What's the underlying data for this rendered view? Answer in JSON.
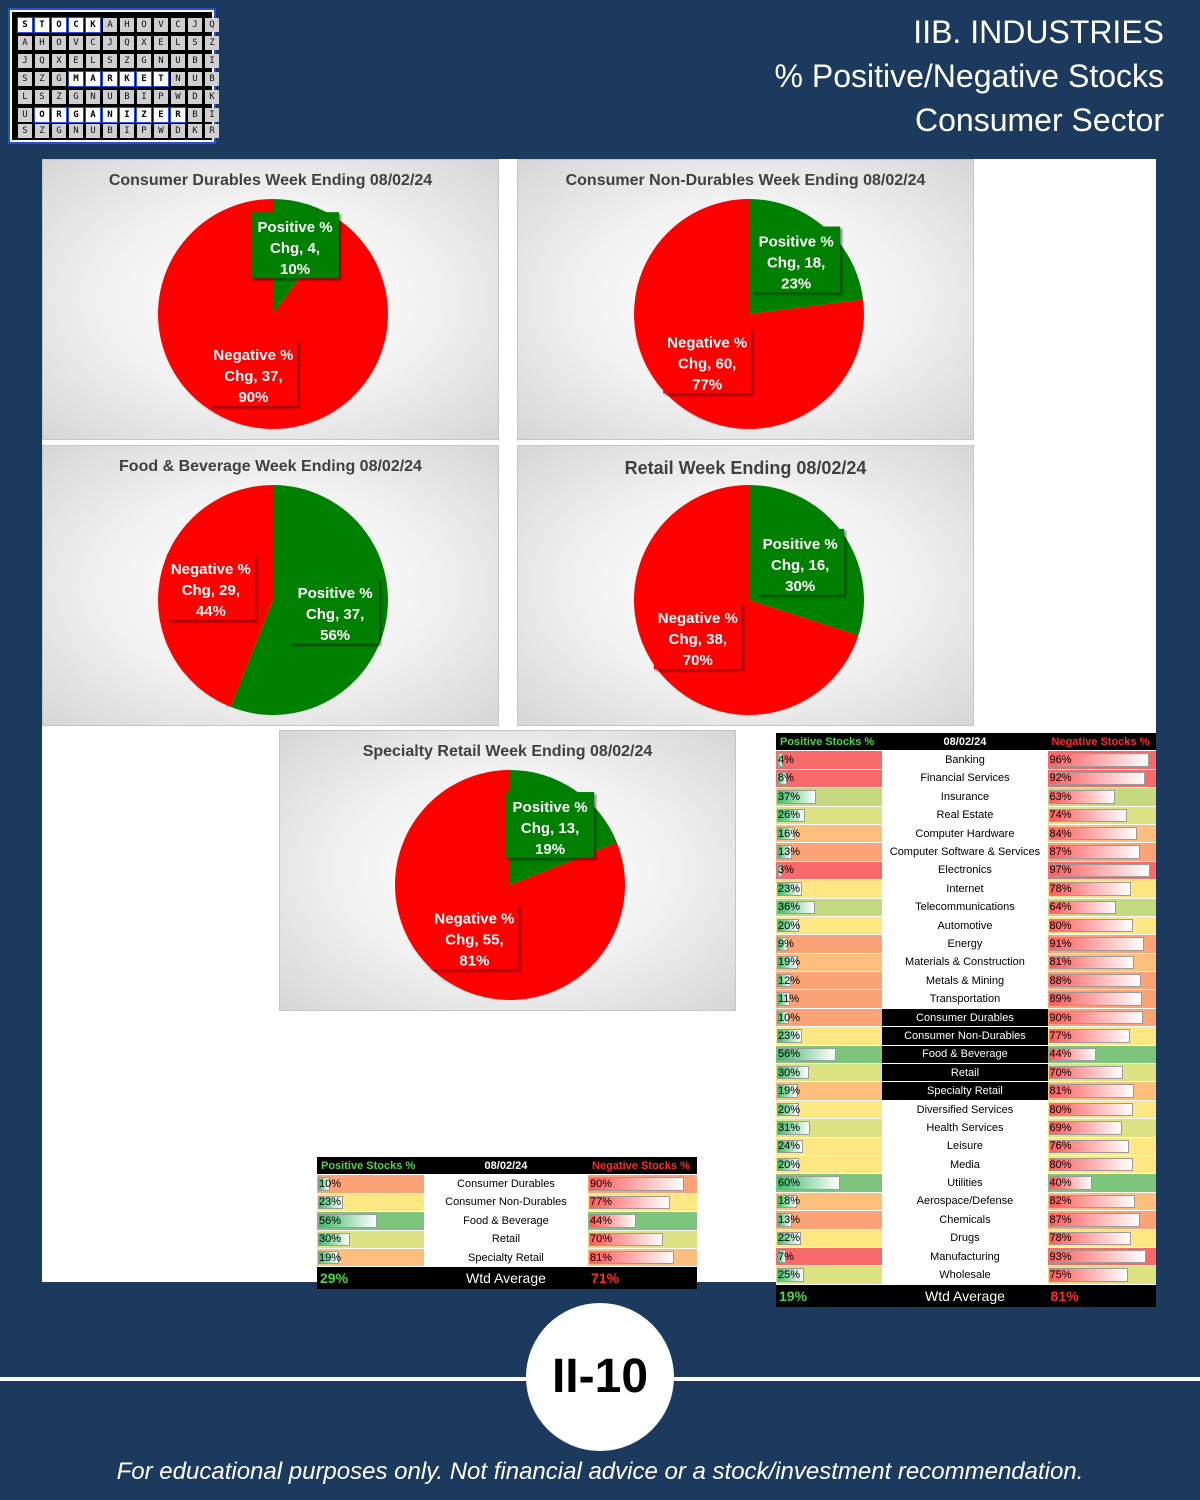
{
  "logo": {
    "row1": [
      "S",
      "T",
      "O",
      "C",
      "K"
    ],
    "row2": [
      "M",
      "A",
      "R",
      "K",
      "E",
      "T"
    ],
    "row3": [
      "O",
      "R",
      "G",
      "A",
      "N",
      "I",
      "Z",
      "E",
      "R"
    ],
    "fill_letters": [
      "A",
      "B",
      "C",
      "D",
      "E",
      "F",
      "G",
      "H",
      "I",
      "J",
      "K",
      "L",
      "M",
      "N",
      "O",
      "P",
      "Q",
      "R",
      "S",
      "T",
      "U",
      "V",
      "W",
      "X",
      "Y",
      "Z"
    ]
  },
  "header": {
    "line1": "IIB. INDUSTRIES",
    "line2": "% Positive/Negative Stocks",
    "line3": "Consumer Sector"
  },
  "colors": {
    "positive": "#008000",
    "negative": "#ff0000",
    "background": "#1c3a5e"
  },
  "chart_data": [
    {
      "type": "pie",
      "title": "Consumer Durables Week Ending 08/02/24",
      "slices": [
        {
          "name": "Positive % Chg",
          "count": 4,
          "pct": 10,
          "color": "#008000"
        },
        {
          "name": "Negative % Chg",
          "count": 37,
          "pct": 90,
          "color": "#ff0000"
        }
      ]
    },
    {
      "type": "pie",
      "title": "Consumer Non-Durables Week Ending 08/02/24",
      "slices": [
        {
          "name": "Positive % Chg",
          "count": 18,
          "pct": 23,
          "color": "#008000"
        },
        {
          "name": "Negative % Chg",
          "count": 60,
          "pct": 77,
          "color": "#ff0000"
        }
      ]
    },
    {
      "type": "pie",
      "title": "Food & Beverage Week Ending 08/02/24",
      "slices": [
        {
          "name": "Positive % Chg",
          "count": 37,
          "pct": 56,
          "color": "#008000"
        },
        {
          "name": "Negative % Chg",
          "count": 29,
          "pct": 44,
          "color": "#ff0000"
        }
      ]
    },
    {
      "type": "pie",
      "title": "Retail Week Ending 08/02/24",
      "slices": [
        {
          "name": "Positive % Chg",
          "count": 16,
          "pct": 30,
          "color": "#008000"
        },
        {
          "name": "Negative % Chg",
          "count": 38,
          "pct": 70,
          "color": "#ff0000"
        }
      ]
    },
    {
      "type": "pie",
      "title": "Specialty Retail Week Ending 08/02/24",
      "slices": [
        {
          "name": "Positive % Chg",
          "count": 13,
          "pct": 19,
          "color": "#008000"
        },
        {
          "name": "Negative % Chg",
          "count": 55,
          "pct": 81,
          "color": "#ff0000"
        }
      ]
    }
  ],
  "small_table": {
    "header_pos": "Positive Stocks %",
    "header_date": "08/02/24",
    "header_neg": "Negative Stocks %",
    "rows": [
      {
        "name": "Consumer Durables",
        "pos": 10,
        "neg": 90
      },
      {
        "name": "Consumer Non-Durables",
        "pos": 23,
        "neg": 77
      },
      {
        "name": "Food & Beverage",
        "pos": 56,
        "neg": 44
      },
      {
        "name": "Retail",
        "pos": 30,
        "neg": 70
      },
      {
        "name": "Specialty Retail",
        "pos": 19,
        "neg": 81
      }
    ],
    "avg_label": "Wtd Average",
    "avg_pos": "29%",
    "avg_neg": "71%"
  },
  "big_table": {
    "header_pos": "Positive Stocks %",
    "header_date": "08/02/24",
    "header_neg": "Negative Stocks %",
    "rows": [
      {
        "name": "Banking",
        "pos": 4,
        "neg": 96
      },
      {
        "name": "Financial Services",
        "pos": 8,
        "neg": 92
      },
      {
        "name": "Insurance",
        "pos": 37,
        "neg": 63
      },
      {
        "name": "Real Estate",
        "pos": 26,
        "neg": 74
      },
      {
        "name": "Computer Hardware",
        "pos": 16,
        "neg": 84
      },
      {
        "name": "Computer Software & Services",
        "pos": 13,
        "neg": 87
      },
      {
        "name": "Electronics",
        "pos": 3,
        "neg": 97
      },
      {
        "name": "Internet",
        "pos": 23,
        "neg": 78
      },
      {
        "name": "Telecommunications",
        "pos": 36,
        "neg": 64
      },
      {
        "name": "Automotive",
        "pos": 20,
        "neg": 80
      },
      {
        "name": "Energy",
        "pos": 9,
        "neg": 91
      },
      {
        "name": "Materials & Construction",
        "pos": 19,
        "neg": 81
      },
      {
        "name": "Metals & Mining",
        "pos": 12,
        "neg": 88
      },
      {
        "name": "Transportation",
        "pos": 11,
        "neg": 89
      },
      {
        "name": "Consumer Durables",
        "pos": 10,
        "neg": 90,
        "highlight": true
      },
      {
        "name": "Consumer Non-Durables",
        "pos": 23,
        "neg": 77,
        "highlight": true
      },
      {
        "name": "Food & Beverage",
        "pos": 56,
        "neg": 44,
        "highlight": true
      },
      {
        "name": "Retail",
        "pos": 30,
        "neg": 70,
        "highlight": true
      },
      {
        "name": "Specialty Retail",
        "pos": 19,
        "neg": 81,
        "highlight": true
      },
      {
        "name": "Diversified Services",
        "pos": 20,
        "neg": 80
      },
      {
        "name": "Health Services",
        "pos": 31,
        "neg": 69
      },
      {
        "name": "Leisure",
        "pos": 24,
        "neg": 76
      },
      {
        "name": "Media",
        "pos": 20,
        "neg": 80
      },
      {
        "name": "Utilities",
        "pos": 60,
        "neg": 40
      },
      {
        "name": "Aerospace/Defense",
        "pos": 18,
        "neg": 82
      },
      {
        "name": "Chemicals",
        "pos": 13,
        "neg": 87
      },
      {
        "name": "Drugs",
        "pos": 22,
        "neg": 78
      },
      {
        "name": "Manufacturing",
        "pos": 7,
        "neg": 93
      },
      {
        "name": "Wholesale",
        "pos": 25,
        "neg": 75
      }
    ],
    "avg_label": "Wtd Average",
    "avg_pos": "19%",
    "avg_neg": "81%"
  },
  "page_number": "II-10",
  "footer": "For educational purposes only. Not financial advice or a stock/investment recommendation."
}
